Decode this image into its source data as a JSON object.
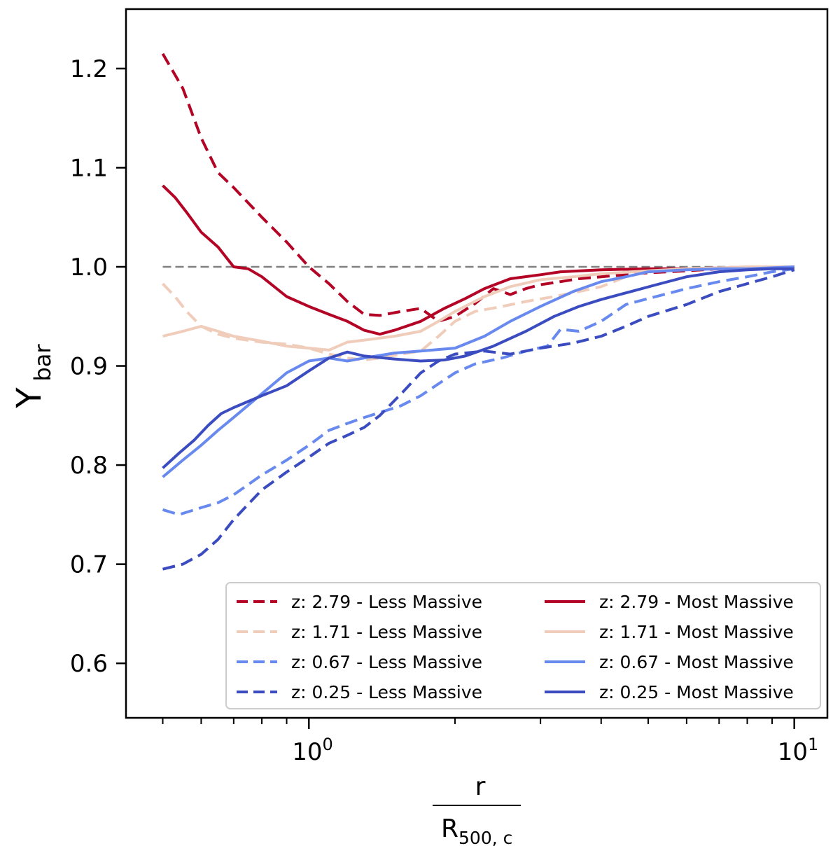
{
  "chart_data": {
    "type": "line",
    "title": "",
    "xlabel": {
      "numerator": "r",
      "denominator_base": "R",
      "denominator_sub": "500, c"
    },
    "ylabel": {
      "base": "Y",
      "sub": "bar"
    },
    "xscale": "log",
    "xlim": [
      0.42,
      11.7
    ],
    "ylim": [
      0.545,
      1.26
    ],
    "yticks": [
      0.6,
      0.7,
      0.8,
      0.9,
      1.0,
      1.1,
      1.2
    ],
    "ytick_labels": [
      "0.6",
      "0.7",
      "0.8",
      "0.9",
      "1.0",
      "1.1",
      "1.2"
    ],
    "xticks_major": [
      {
        "value": 1,
        "base": "10",
        "exp": "0"
      },
      {
        "value": 10,
        "base": "10",
        "exp": "1"
      }
    ],
    "xticks_minor": [
      0.5,
      0.6,
      0.7,
      0.8,
      0.9,
      2,
      3,
      4,
      5,
      6,
      7,
      8,
      9
    ],
    "reference_line": {
      "y": 1.0,
      "color": "#808080",
      "style": "dashed"
    },
    "legend": {
      "position": "lower-right",
      "columns": 2
    },
    "series": [
      {
        "name": "z: 2.79 - Less Massive",
        "color": "#b40426",
        "style": "dashed",
        "x": [
          0.5,
          0.55,
          0.6,
          0.65,
          0.7,
          0.8,
          0.9,
          1.0,
          1.1,
          1.2,
          1.3,
          1.4,
          1.55,
          1.7,
          1.85,
          2.0,
          2.2,
          2.4,
          2.6,
          2.8,
          3.0,
          3.3,
          3.6,
          4.0,
          5.0,
          6.0,
          7.0,
          8.0,
          9.0,
          10.0
        ],
        "y": [
          1.215,
          1.18,
          1.13,
          1.095,
          1.08,
          1.05,
          1.025,
          1.0,
          0.983,
          0.965,
          0.952,
          0.951,
          0.955,
          0.958,
          0.945,
          0.95,
          0.963,
          0.978,
          0.972,
          0.978,
          0.982,
          0.985,
          0.988,
          0.99,
          0.994,
          0.996,
          0.998,
          0.999,
          0.999,
          1.0
        ]
      },
      {
        "name": "z: 1.71 - Less Massive",
        "color": "#f0cdbb",
        "style": "dashed",
        "x": [
          0.5,
          0.53,
          0.56,
          0.6,
          0.65,
          0.7,
          0.8,
          0.9,
          1.0,
          1.1,
          1.2,
          1.3,
          1.4,
          1.55,
          1.7,
          1.85,
          2.0,
          2.2,
          2.5,
          2.8,
          3.2,
          3.6,
          4.0,
          4.5,
          5.0,
          6.0,
          7.0,
          8.0,
          9.0,
          10.0
        ],
        "y": [
          0.983,
          0.97,
          0.955,
          0.94,
          0.932,
          0.928,
          0.924,
          0.922,
          0.918,
          0.912,
          0.908,
          0.906,
          0.908,
          0.912,
          0.915,
          0.93,
          0.945,
          0.955,
          0.96,
          0.965,
          0.97,
          0.975,
          0.98,
          0.99,
          0.995,
          0.998,
          0.999,
          1.0,
          1.0,
          1.0
        ]
      },
      {
        "name": "z: 0.67 - Less Massive",
        "color": "#6889ee",
        "style": "dashed",
        "x": [
          0.5,
          0.54,
          0.6,
          0.65,
          0.7,
          0.8,
          0.9,
          1.0,
          1.1,
          1.2,
          1.3,
          1.4,
          1.55,
          1.7,
          1.85,
          2.0,
          2.2,
          2.5,
          2.8,
          3.1,
          3.3,
          3.6,
          4.0,
          4.5,
          5.0,
          6.0,
          7.0,
          8.0,
          9.0,
          10.0
        ],
        "y": [
          0.755,
          0.75,
          0.757,
          0.762,
          0.77,
          0.79,
          0.805,
          0.82,
          0.835,
          0.842,
          0.848,
          0.853,
          0.86,
          0.87,
          0.882,
          0.893,
          0.902,
          0.908,
          0.915,
          0.92,
          0.937,
          0.935,
          0.945,
          0.962,
          0.968,
          0.978,
          0.985,
          0.99,
          0.995,
          0.998
        ]
      },
      {
        "name": "z: 0.25 - Less Massive",
        "color": "#3b4cc0",
        "style": "dashed",
        "x": [
          0.5,
          0.55,
          0.6,
          0.65,
          0.7,
          0.8,
          0.9,
          1.0,
          1.1,
          1.2,
          1.3,
          1.4,
          1.55,
          1.7,
          1.85,
          2.0,
          2.3,
          2.6,
          3.0,
          3.5,
          4.0,
          4.5,
          5.0,
          6.0,
          7.0,
          8.0,
          9.0,
          10.0
        ],
        "y": [
          0.695,
          0.7,
          0.71,
          0.725,
          0.745,
          0.775,
          0.793,
          0.808,
          0.822,
          0.83,
          0.838,
          0.85,
          0.872,
          0.893,
          0.905,
          0.912,
          0.915,
          0.912,
          0.918,
          0.923,
          0.93,
          0.94,
          0.95,
          0.962,
          0.975,
          0.983,
          0.99,
          0.997
        ]
      },
      {
        "name": "z: 2.79 - Most Massive",
        "color": "#b40426",
        "style": "solid",
        "x": [
          0.5,
          0.53,
          0.56,
          0.6,
          0.65,
          0.7,
          0.75,
          0.8,
          0.9,
          1.0,
          1.1,
          1.2,
          1.3,
          1.4,
          1.5,
          1.7,
          1.9,
          2.1,
          2.3,
          2.6,
          3.0,
          3.3,
          4.0,
          5.0,
          6.0,
          7.0,
          8.0,
          9.0,
          10.0
        ],
        "y": [
          1.082,
          1.07,
          1.055,
          1.035,
          1.02,
          1.0,
          0.998,
          0.99,
          0.97,
          0.96,
          0.952,
          0.945,
          0.936,
          0.932,
          0.936,
          0.945,
          0.958,
          0.968,
          0.978,
          0.988,
          0.992,
          0.995,
          0.997,
          0.998,
          0.998,
          0.999,
          0.999,
          1.0,
          1.0
        ]
      },
      {
        "name": "z: 1.71 - Most Massive",
        "color": "#f0cdbb",
        "style": "solid",
        "x": [
          0.5,
          0.55,
          0.6,
          0.65,
          0.7,
          0.8,
          0.9,
          1.0,
          1.1,
          1.2,
          1.3,
          1.5,
          1.7,
          1.85,
          2.0,
          2.3,
          2.6,
          3.0,
          3.5,
          4.0,
          5.0,
          6.0,
          7.0,
          8.0,
          9.0,
          10.0
        ],
        "y": [
          0.93,
          0.935,
          0.94,
          0.935,
          0.93,
          0.925,
          0.92,
          0.918,
          0.916,
          0.924,
          0.926,
          0.93,
          0.935,
          0.945,
          0.955,
          0.97,
          0.98,
          0.987,
          0.99,
          0.993,
          0.996,
          0.998,
          0.999,
          1.0,
          1.0,
          1.0
        ]
      },
      {
        "name": "z: 0.67 - Most Massive",
        "color": "#6889ee",
        "style": "solid",
        "x": [
          0.5,
          0.55,
          0.6,
          0.65,
          0.7,
          0.8,
          0.9,
          1.0,
          1.1,
          1.2,
          1.3,
          1.5,
          1.7,
          2.0,
          2.3,
          2.6,
          3.0,
          3.5,
          4.0,
          4.5,
          5.0,
          6.0,
          7.0,
          8.0,
          9.0,
          10.0
        ],
        "y": [
          0.788,
          0.805,
          0.82,
          0.835,
          0.848,
          0.872,
          0.893,
          0.905,
          0.908,
          0.905,
          0.908,
          0.913,
          0.915,
          0.918,
          0.93,
          0.945,
          0.96,
          0.975,
          0.985,
          0.99,
          0.995,
          0.997,
          0.998,
          0.998,
          0.999,
          1.0
        ]
      },
      {
        "name": "z: 0.25 - Most Massive",
        "color": "#3b4cc0",
        "style": "solid",
        "x": [
          0.5,
          0.54,
          0.58,
          0.62,
          0.66,
          0.7,
          0.8,
          0.9,
          1.0,
          1.1,
          1.2,
          1.3,
          1.5,
          1.7,
          1.9,
          2.1,
          2.4,
          2.8,
          3.2,
          3.6,
          4.0,
          4.6,
          5.2,
          6.0,
          7.0,
          8.0,
          9.0,
          10.0
        ],
        "y": [
          0.797,
          0.812,
          0.825,
          0.84,
          0.852,
          0.858,
          0.87,
          0.88,
          0.895,
          0.908,
          0.914,
          0.91,
          0.907,
          0.905,
          0.906,
          0.91,
          0.92,
          0.935,
          0.95,
          0.96,
          0.967,
          0.975,
          0.982,
          0.99,
          0.995,
          0.997,
          0.998,
          0.998
        ]
      }
    ]
  }
}
